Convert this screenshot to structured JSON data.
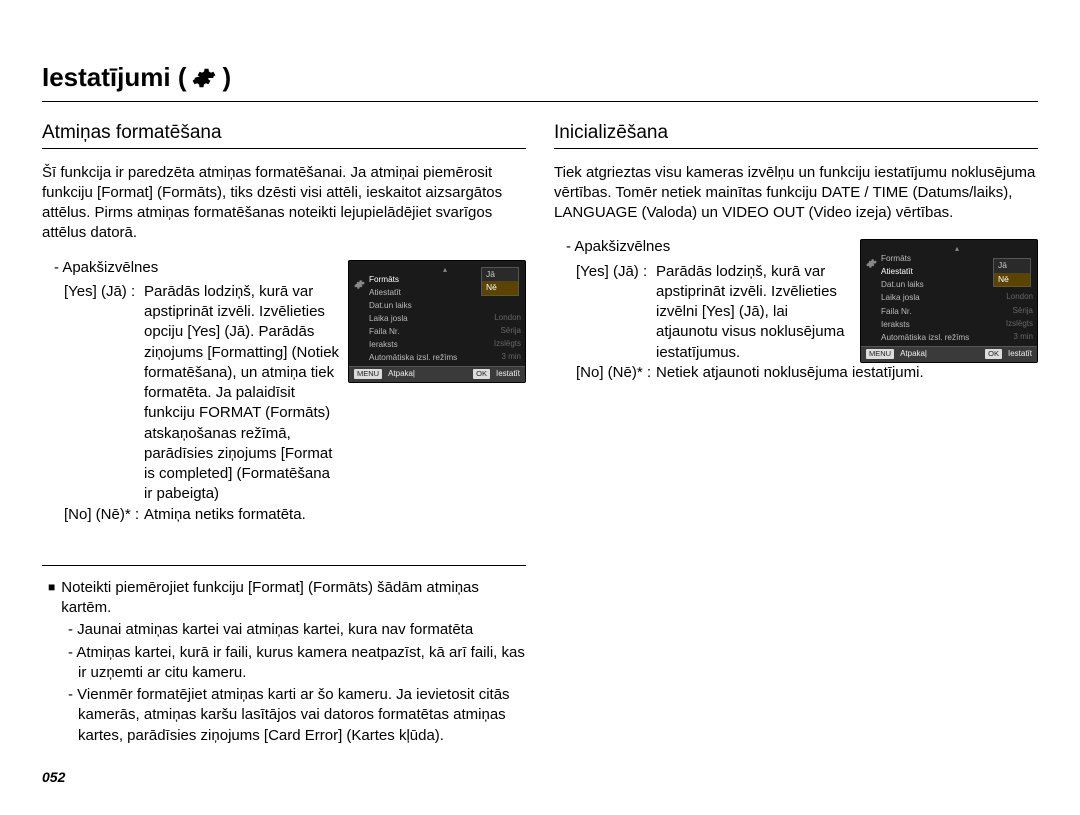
{
  "page": {
    "title": "Iestatījumi (",
    "title_close": ")",
    "number": "052"
  },
  "left": {
    "heading": "Atmiņas formatēšana",
    "intro": "Šī funkcija ir paredzēta atmiņas formatēšanai. Ja atmiņai piemērosit funkciju [Format] (Formāts), tiks dzēsti visi attēli, ieskaitot aizsargātos attēlus. Pirms atmiņas formatēšanas noteikti lejupielādējiet svarīgos attēlus datorā.",
    "sub_label": "- Apakšizvēlnes",
    "yes_key": "[Yes] (Jā) :",
    "yes_desc": "Parādās lodziņš, kurā var apstiprināt izvēli. Izvēlieties opciju [Yes] (Jā). Parādās ziņojums [Formatting] (Notiek formatēšana), un atmiņa tiek formatēta. Ja palaidīsit funkciju FORMAT (Formāts) atskaņošanas režīmā, parādīsies ziņojums [Format is completed] (Formatēšana ir pabeigta)",
    "no_key": "[No] (Nē)* :",
    "no_desc": "Atmiņa netiks formatēta.",
    "note_lead": "Noteikti piemērojiet funkciju [Format] (Formāts) šādām atmiņas kartēm.",
    "note_b1": "- Jaunai atmiņas kartei vai atmiņas kartei, kura nav formatēta",
    "note_b2": "- Atmiņas kartei, kurā ir faili, kurus kamera neatpazīst, kā arī faili, kas ir uzņemti ar citu kameru.",
    "note_b3": "- Vienmēr formatējiet atmiņas karti ar šo kameru. Ja ievietosit citās kamerās, atmiņas karšu lasītājos vai datoros formatētas atmiņas kartes, parādīsies ziņojums [Card Error] (Kartes kļūda)."
  },
  "right": {
    "heading": "Inicializēšana",
    "intro": "Tiek atgrieztas visu kameras izvēlņu un funkciju iestatījumu noklusējuma vērtības. Tomēr netiek mainītas funkciju DATE / TIME (Datums/laiks), LANGUAGE (Valoda) un VIDEO OUT (Video izeja) vērtības.",
    "sub_label": "- Apakšizvēlnes",
    "yes_key": "[Yes] (Jā) :",
    "yes_desc": "Parādās lodziņš, kurā var apstiprināt izvēli. Izvēlieties izvēlni [Yes] (Jā), lai atjaunotu visus noklusējuma iestatījumus.",
    "no_key": "[No] (Nē)* :",
    "no_desc": "Netiek atjaunoti noklusējuma iestatījumi."
  },
  "mockup": {
    "items": [
      {
        "l": "Formāts",
        "r": ""
      },
      {
        "l": "Atiestatīt",
        "r": ""
      },
      {
        "l": "Dat.un laiks",
        "r": ""
      },
      {
        "l": "Laika josla",
        "r": "London"
      },
      {
        "l": "Faila Nr.",
        "r": "Sērija"
      },
      {
        "l": "Ieraksts",
        "r": "Izslēgts"
      },
      {
        "l": "Automātiska izsl. režīms",
        "r": "3 min"
      }
    ],
    "popup_yes": "Jā",
    "popup_no": "Nē",
    "footer_menu": "MENU",
    "footer_back": "Atpakaļ",
    "footer_ok": "OK",
    "footer_set": "Iestatīt"
  },
  "mockup2": {
    "items": [
      {
        "l": "Formāts",
        "r": ""
      },
      {
        "l": "Atiestatīt",
        "r": ""
      },
      {
        "l": "Dat.un laiks",
        "r": ""
      },
      {
        "l": "Laika josla",
        "r": "London"
      },
      {
        "l": "Faila Nr.",
        "r": "Sērija"
      },
      {
        "l": "Ieraksts",
        "r": "Izslēgts"
      },
      {
        "l": "Automātiska izsl. režīms",
        "r": "3 min"
      }
    ],
    "highlight_index": 1
  },
  "colors": {
    "mockup_bg": "#1a1a1a",
    "mockup_text": "#bbbbbb",
    "mockup_dim": "#666666",
    "popup_hl": "#5a4400"
  }
}
